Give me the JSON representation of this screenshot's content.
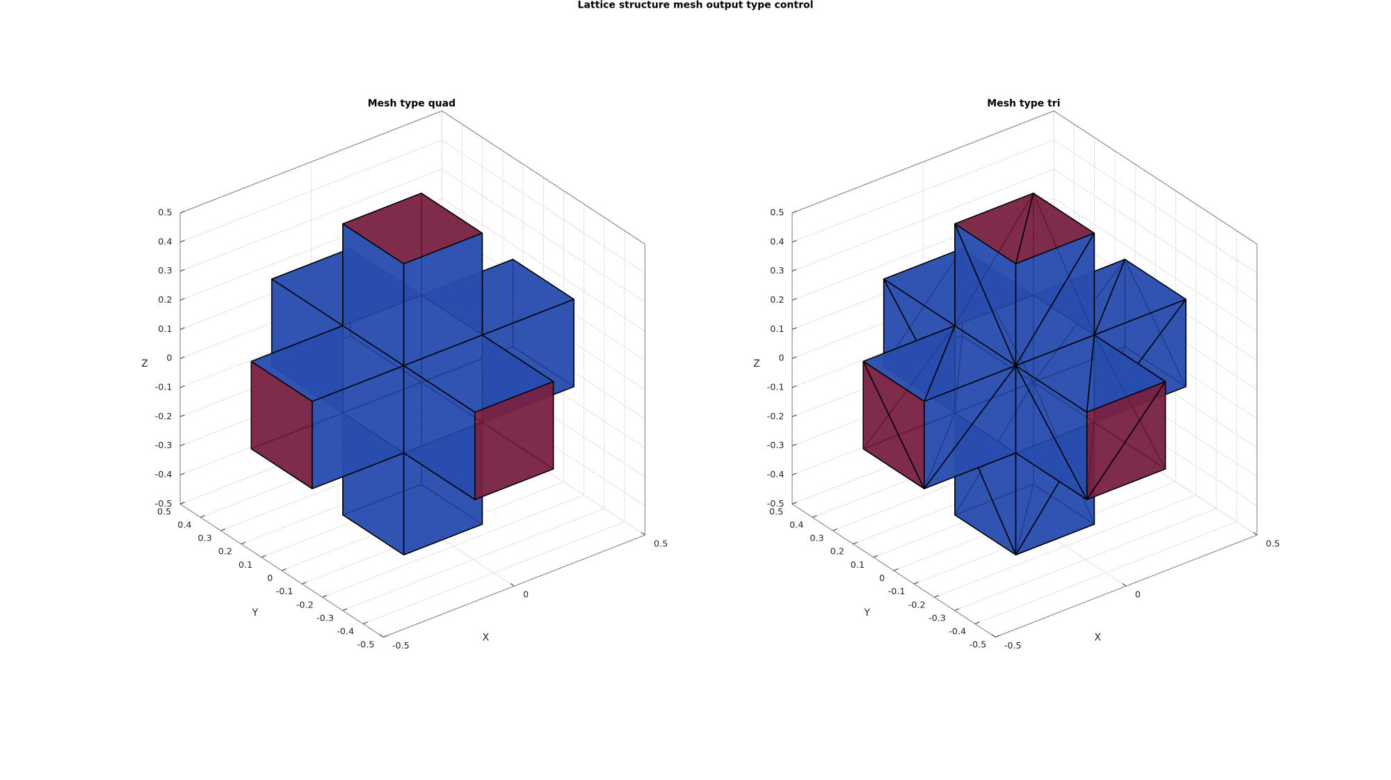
{
  "title": "Lattice structure mesh output type control",
  "chart_data": [
    {
      "type": "mesh3d",
      "title": "Mesh type quad",
      "mesh_type": "quad",
      "xlabel": "X",
      "ylabel": "Y",
      "zlabel": "Z",
      "xlim": [
        -0.5,
        0.5
      ],
      "ylim": [
        -0.5,
        0.5
      ],
      "zlim": [
        -0.5,
        0.5
      ],
      "xticks": [
        -0.5,
        0,
        0.5
      ],
      "yticks": [
        -0.5,
        -0.4,
        -0.3,
        -0.2,
        -0.1,
        0,
        0.1,
        0.2,
        0.3,
        0.4,
        0.5
      ],
      "zticks": [
        -0.5,
        -0.4,
        -0.3,
        -0.2,
        -0.1,
        0,
        0.1,
        0.2,
        0.3,
        0.4,
        0.5
      ],
      "arm_half_width": 0.15,
      "arm_length": 0.5,
      "grid": true,
      "colors": {
        "cap": "#861d36",
        "side": "#2550b5",
        "back": "#383c8c"
      }
    },
    {
      "type": "mesh3d",
      "title": "Mesh type tri",
      "mesh_type": "tri",
      "xlabel": "X",
      "ylabel": "Y",
      "zlabel": "Z",
      "xlim": [
        -0.5,
        0.5
      ],
      "ylim": [
        -0.5,
        0.5
      ],
      "zlim": [
        -0.5,
        0.5
      ],
      "xticks": [
        -0.5,
        0,
        0.5
      ],
      "yticks": [
        -0.5,
        -0.4,
        -0.3,
        -0.2,
        -0.1,
        0,
        0.1,
        0.2,
        0.3,
        0.4,
        0.5
      ],
      "zticks": [
        -0.5,
        -0.4,
        -0.3,
        -0.2,
        -0.1,
        0,
        0.1,
        0.2,
        0.3,
        0.4,
        0.5
      ],
      "arm_half_width": 0.15,
      "arm_length": 0.5,
      "grid": true,
      "colors": {
        "cap": "#861d36",
        "side": "#2550b5",
        "back": "#383c8c"
      }
    }
  ]
}
